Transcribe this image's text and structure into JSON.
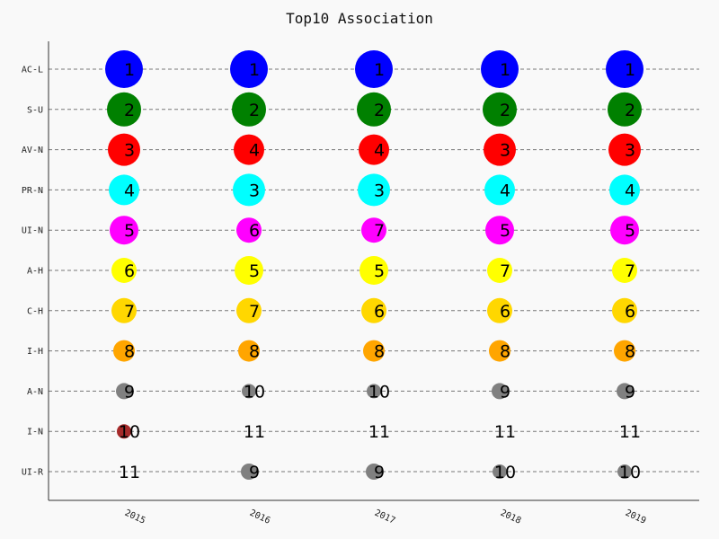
{
  "chart_data": {
    "type": "scatter",
    "title": "Top10 Association",
    "xlabel": "",
    "ylabel": "",
    "x_categories": [
      "2015",
      "2016",
      "2017",
      "2018",
      "2019"
    ],
    "y_categories": [
      "AC-L",
      "S-U",
      "AV-N",
      "PR-N",
      "UI-N",
      "A-H",
      "C-H",
      "I-H",
      "A-N",
      "I-N",
      "UI-R"
    ],
    "grid": "horizontal dashed",
    "legend": "none",
    "series": [
      {
        "label": "AC-L",
        "color": "#0000ff",
        "ranks": [
          1,
          1,
          1,
          1,
          1
        ]
      },
      {
        "label": "S-U",
        "color": "#008000",
        "ranks": [
          2,
          2,
          2,
          2,
          2
        ]
      },
      {
        "label": "AV-N",
        "color": "#ff0000",
        "ranks": [
          3,
          4,
          4,
          3,
          3
        ]
      },
      {
        "label": "PR-N",
        "color": "#00ffff",
        "ranks": [
          4,
          3,
          3,
          4,
          4
        ]
      },
      {
        "label": "UI-N",
        "color": "#ff00ff",
        "ranks": [
          5,
          6,
          7,
          5,
          5
        ]
      },
      {
        "label": "A-H",
        "color": "#ffff00",
        "ranks": [
          6,
          5,
          5,
          7,
          7
        ]
      },
      {
        "label": "C-H",
        "color": "#ffd700",
        "ranks": [
          7,
          7,
          6,
          6,
          6
        ]
      },
      {
        "label": "I-H",
        "color": "#ffa500",
        "ranks": [
          8,
          8,
          8,
          8,
          8
        ]
      },
      {
        "label": "A-N",
        "color": "#808080",
        "ranks": [
          9,
          10,
          10,
          9,
          9
        ]
      },
      {
        "label": "I-N",
        "color": "#a52a2a",
        "ranks": [
          10,
          11,
          11,
          11,
          11
        ]
      },
      {
        "label": "UI-R",
        "color": "#808080",
        "ranks": [
          11,
          9,
          9,
          10,
          10
        ]
      }
    ]
  }
}
